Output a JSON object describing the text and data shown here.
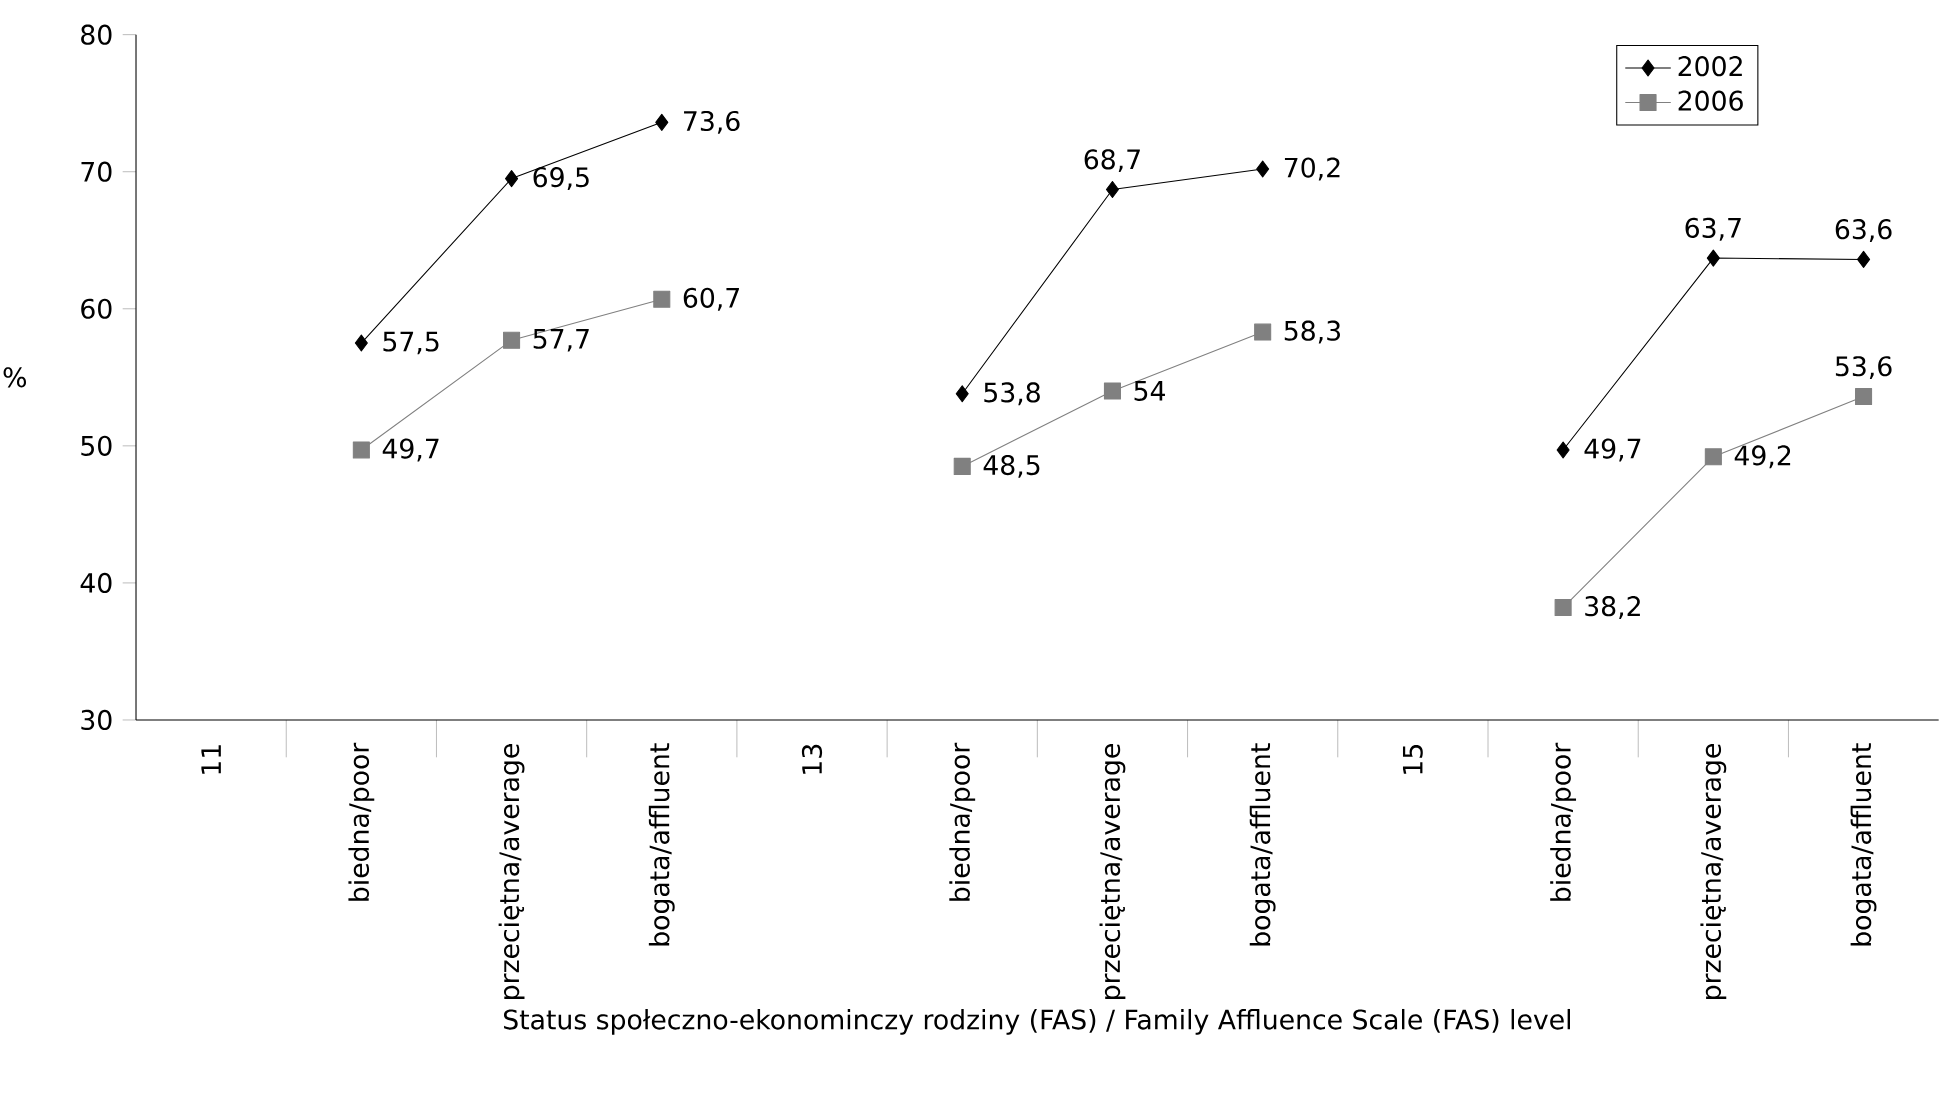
{
  "chart_data": {
    "type": "line",
    "ylabel": "%",
    "xlabel": "Status społeczno-ekonominczy rodziny (FAS) / Family Affluence Scale (FAS) level",
    "categories": [
      "11",
      "biedna/poor",
      "przeciętna/average",
      "bogata/affluent",
      "13",
      "biedna/poor",
      "przeciętna/average",
      "bogata/affluent",
      "15",
      "biedna/poor",
      "przeciętna/average",
      "bogata/affluent"
    ],
    "series": [
      {
        "name": "2002",
        "color": "#000000",
        "marker": "diamond",
        "values": [
          null,
          57.5,
          69.5,
          73.6,
          null,
          53.8,
          68.7,
          70.2,
          null,
          49.7,
          63.7,
          63.6
        ],
        "value_labels": [
          null,
          "57,5",
          "69,5",
          "73,6",
          null,
          "53,8",
          "68,7",
          "70,2",
          null,
          "49,7",
          "63,7",
          "63,6"
        ]
      },
      {
        "name": "2006",
        "color": "#808080",
        "marker": "square",
        "values": [
          null,
          49.7,
          57.7,
          60.7,
          null,
          48.5,
          54,
          58.3,
          null,
          38.2,
          49.2,
          53.6
        ],
        "value_labels": [
          null,
          "49,7",
          "57,7",
          "60,7",
          null,
          "48,5",
          "54",
          "58,3",
          null,
          "38,2",
          "49,2",
          "53,6"
        ]
      }
    ],
    "ylim": [
      30,
      80
    ],
    "yticks": [
      30,
      40,
      50,
      60,
      70,
      80
    ],
    "grid": false,
    "legend": "top right",
    "line_style": "solid"
  }
}
